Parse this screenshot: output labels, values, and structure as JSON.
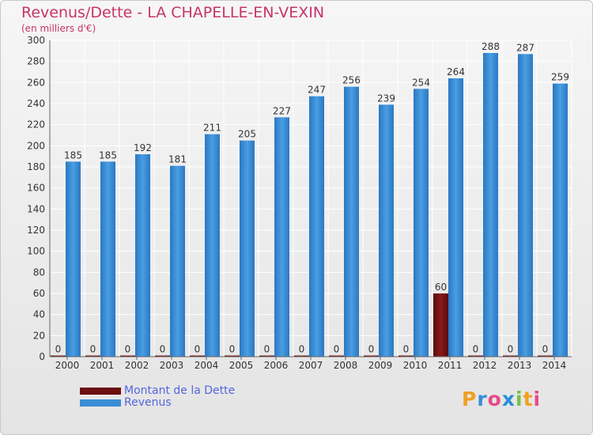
{
  "chart_data": {
    "type": "bar",
    "title": "Revenus/Dette - LA CHAPELLE-EN-VEXIN",
    "subtitle": "(en milliers d'€)",
    "categories": [
      "2000",
      "2001",
      "2002",
      "2003",
      "2004",
      "2005",
      "2006",
      "2007",
      "2008",
      "2009",
      "2010",
      "2011",
      "2012",
      "2013",
      "2014"
    ],
    "series": [
      {
        "name": "Montant de la Dette",
        "color": "#6b0f0f",
        "values": [
          0,
          0,
          0,
          0,
          0,
          0,
          0,
          0,
          0,
          0,
          0,
          60,
          0,
          0,
          0
        ]
      },
      {
        "name": "Revenus",
        "color": "#3b8ed6",
        "values": [
          185,
          185,
          192,
          181,
          211,
          205,
          227,
          247,
          256,
          239,
          254,
          264,
          288,
          287,
          259
        ]
      }
    ],
    "ylim": [
      0,
      300
    ],
    "yticks": [
      0,
      20,
      40,
      60,
      80,
      100,
      120,
      140,
      160,
      180,
      200,
      220,
      240,
      260,
      280,
      300
    ],
    "grid": true,
    "legend_position": "bottom-left"
  },
  "logo": {
    "letters": [
      "P",
      "r",
      "o",
      "x",
      "i",
      "t",
      "i"
    ],
    "colors": [
      "#f0a020",
      "#3b8ed6",
      "#e84a8a",
      "#2c8fd6",
      "#7ac043",
      "#f0a020",
      "#e84a8a"
    ]
  }
}
